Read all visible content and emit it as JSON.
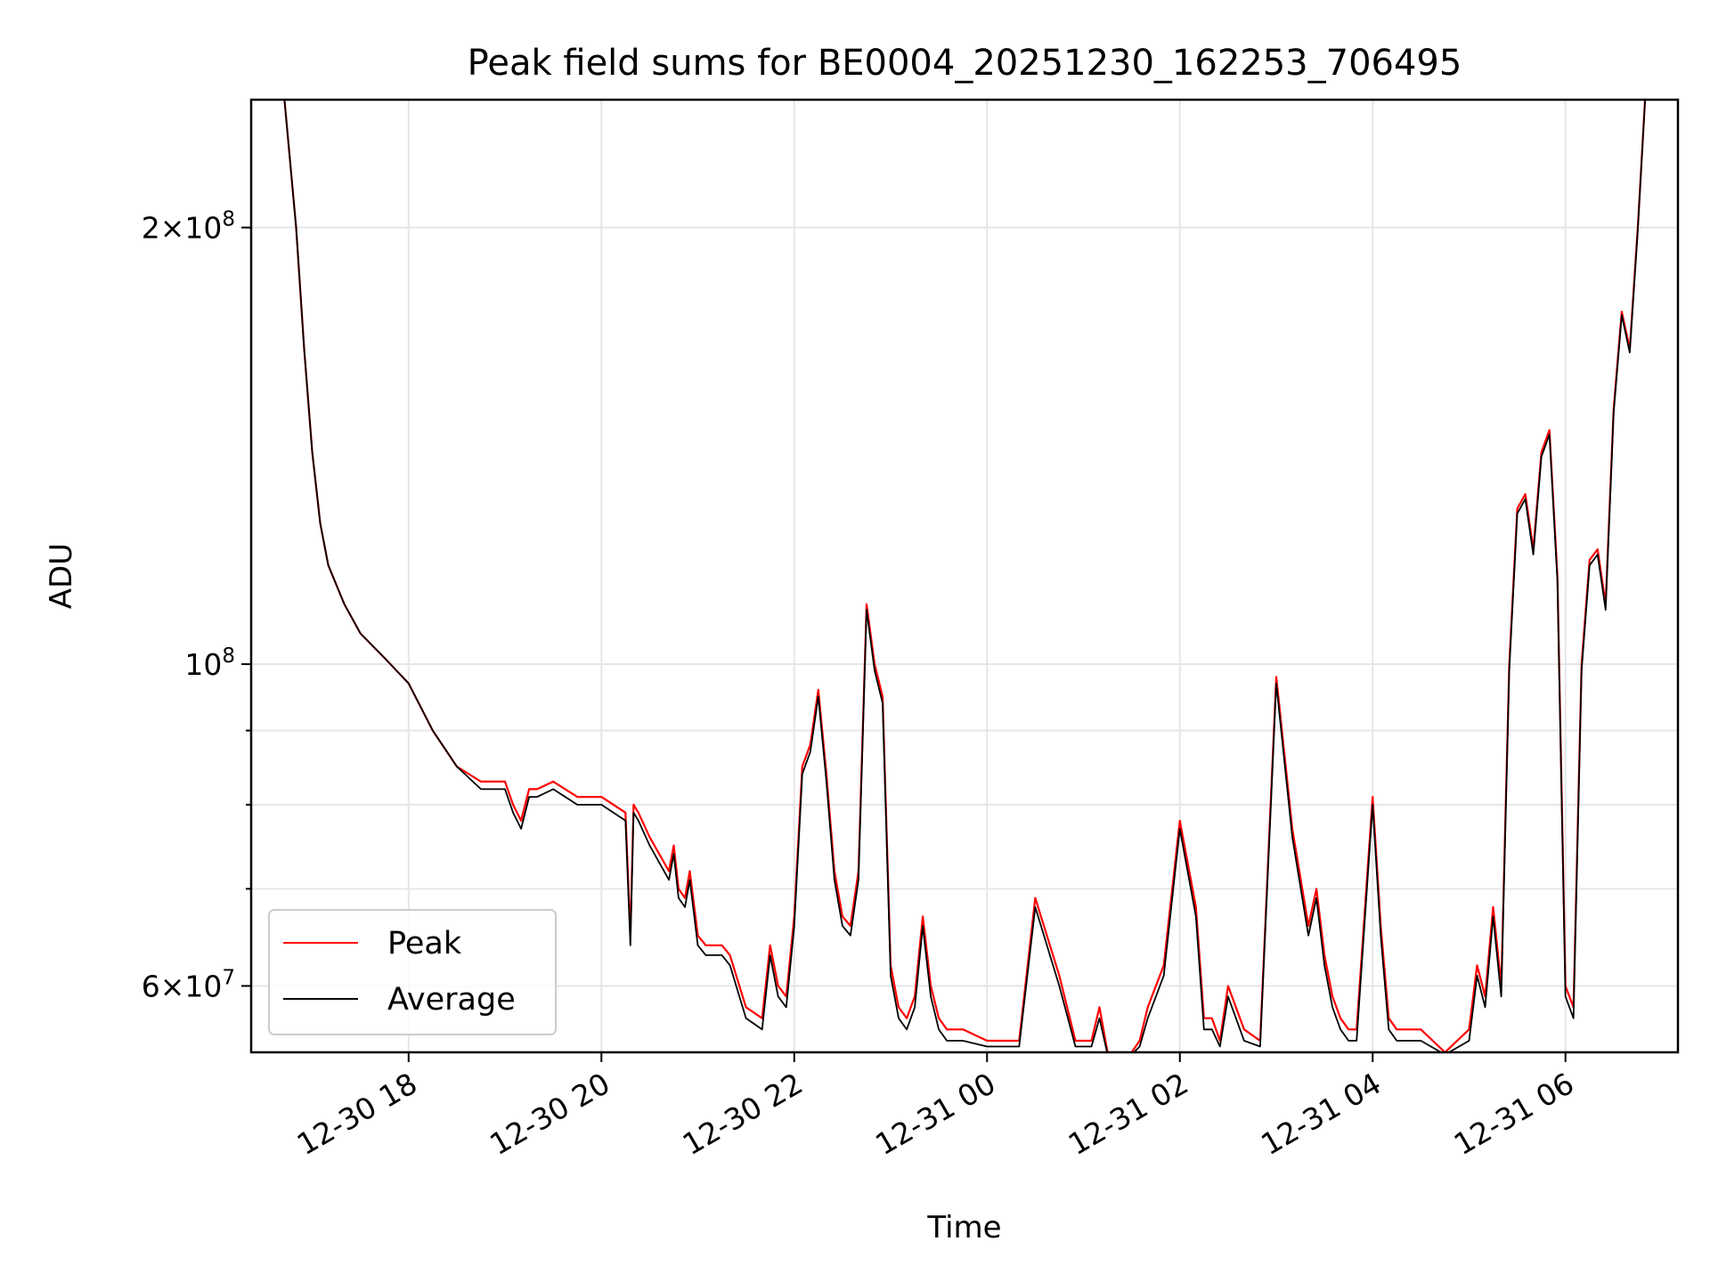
{
  "chart_data": {
    "type": "line",
    "title": "Peak field sums for BE0004_20251230_162253_706495",
    "xlabel": "Time",
    "ylabel": "ADU",
    "y_scale": "log",
    "ylim": [
      54000000,
      245000000
    ],
    "xlim": [
      "2025-12-30 16:22",
      "2025-12-31 07:10"
    ],
    "grid": true,
    "legend_position": "lower-left",
    "x_tick_labels": [
      "12-30 18",
      "12-30 20",
      "12-30 22",
      "12-31 00",
      "12-31 02",
      "12-31 04",
      "12-31 06"
    ],
    "x_ticks": [
      "2025-12-30 18:00",
      "2025-12-30 20:00",
      "2025-12-30 22:00",
      "2025-12-31 00:00",
      "2025-12-31 02:00",
      "2025-12-31 04:00",
      "2025-12-31 06:00"
    ],
    "y_major_ticks": [
      {
        "value": 60000000,
        "mantissa": "6",
        "exp": "7"
      },
      {
        "value": 100000000,
        "mantissa": "",
        "exp": "8"
      },
      {
        "value": 200000000,
        "mantissa": "2",
        "exp": "8"
      }
    ],
    "y_minor_ticks": [
      70000000,
      80000000,
      90000000
    ],
    "series": [
      {
        "name": "Peak",
        "color": "#ff0000"
      },
      {
        "name": "Average",
        "color": "#000000"
      }
    ],
    "x": [
      "2025-12-30 16:42",
      "2025-12-30 16:50",
      "2025-12-30 16:55",
      "2025-12-30 17:00",
      "2025-12-30 17:05",
      "2025-12-30 17:10",
      "2025-12-30 17:20",
      "2025-12-30 17:30",
      "2025-12-30 17:45",
      "2025-12-30 18:00",
      "2025-12-30 18:15",
      "2025-12-30 18:30",
      "2025-12-30 18:45",
      "2025-12-30 19:00",
      "2025-12-30 19:05",
      "2025-12-30 19:10",
      "2025-12-30 19:15",
      "2025-12-30 19:20",
      "2025-12-30 19:30",
      "2025-12-30 19:45",
      "2025-12-30 20:00",
      "2025-12-30 20:15",
      "2025-12-30 20:18",
      "2025-12-30 20:20",
      "2025-12-30 20:23",
      "2025-12-30 20:30",
      "2025-12-30 20:42",
      "2025-12-30 20:45",
      "2025-12-30 20:48",
      "2025-12-30 20:52",
      "2025-12-30 20:55",
      "2025-12-30 21:00",
      "2025-12-30 21:05",
      "2025-12-30 21:10",
      "2025-12-30 21:15",
      "2025-12-30 21:20",
      "2025-12-30 21:30",
      "2025-12-30 21:40",
      "2025-12-30 21:45",
      "2025-12-30 21:50",
      "2025-12-30 21:55",
      "2025-12-30 22:00",
      "2025-12-30 22:05",
      "2025-12-30 22:10",
      "2025-12-30 22:15",
      "2025-12-30 22:20",
      "2025-12-30 22:25",
      "2025-12-30 22:30",
      "2025-12-30 22:35",
      "2025-12-30 22:40",
      "2025-12-30 22:45",
      "2025-12-30 22:50",
      "2025-12-30 22:55",
      "2025-12-30 23:00",
      "2025-12-30 23:05",
      "2025-12-30 23:10",
      "2025-12-30 23:15",
      "2025-12-30 23:20",
      "2025-12-30 23:25",
      "2025-12-30 23:30",
      "2025-12-30 23:35",
      "2025-12-30 23:40",
      "2025-12-30 23:45",
      "2025-12-31 00:00",
      "2025-12-31 00:20",
      "2025-12-31 00:30",
      "2025-12-31 00:45",
      "2025-12-31 00:55",
      "2025-12-31 01:00",
      "2025-12-31 01:05",
      "2025-12-31 01:10",
      "2025-12-31 01:15",
      "2025-12-31 01:30",
      "2025-12-31 01:35",
      "2025-12-31 01:40",
      "2025-12-31 01:50",
      "2025-12-31 02:00",
      "2025-12-31 02:10",
      "2025-12-31 02:15",
      "2025-12-31 02:20",
      "2025-12-31 02:25",
      "2025-12-31 02:30",
      "2025-12-31 02:40",
      "2025-12-31 02:50",
      "2025-12-31 03:00",
      "2025-12-31 03:10",
      "2025-12-31 03:20",
      "2025-12-31 03:25",
      "2025-12-31 03:30",
      "2025-12-31 03:35",
      "2025-12-31 03:40",
      "2025-12-31 03:45",
      "2025-12-31 03:50",
      "2025-12-31 04:00",
      "2025-12-31 04:05",
      "2025-12-31 04:10",
      "2025-12-31 04:15",
      "2025-12-31 04:20",
      "2025-12-31 04:30",
      "2025-12-31 04:45",
      "2025-12-31 05:00",
      "2025-12-31 05:05",
      "2025-12-31 05:10",
      "2025-12-31 05:15",
      "2025-12-31 05:20",
      "2025-12-31 05:25",
      "2025-12-31 05:30",
      "2025-12-31 05:35",
      "2025-12-31 05:40",
      "2025-12-31 05:45",
      "2025-12-31 05:50",
      "2025-12-31 05:55",
      "2025-12-31 06:00",
      "2025-12-31 06:05",
      "2025-12-31 06:10",
      "2025-12-31 06:15",
      "2025-12-31 06:20",
      "2025-12-31 06:25",
      "2025-12-31 06:30",
      "2025-12-31 06:35",
      "2025-12-31 06:40",
      "2025-12-31 06:45",
      "2025-12-31 06:50"
    ],
    "peak": [
      250000000,
      200000000,
      165000000,
      140000000,
      125000000,
      117000000,
      110000000,
      105000000,
      101000000,
      97000000,
      90000000,
      85000000,
      83000000,
      83000000,
      80000000,
      78000000,
      82000000,
      82000000,
      83000000,
      81000000,
      81000000,
      79000000,
      65000000,
      80000000,
      79000000,
      76000000,
      72000000,
      75000000,
      70000000,
      69000000,
      72000000,
      65000000,
      64000000,
      64000000,
      64000000,
      63000000,
      58000000,
      57000000,
      64000000,
      60000000,
      59000000,
      67000000,
      85000000,
      88000000,
      96000000,
      84000000,
      72000000,
      67000000,
      66000000,
      72000000,
      110000000,
      100000000,
      95000000,
      62000000,
      58000000,
      57000000,
      59000000,
      67000000,
      60000000,
      57000000,
      56000000,
      56000000,
      56000000,
      55000000,
      55000000,
      69000000,
      61000000,
      55000000,
      55000000,
      55000000,
      58000000,
      54000000,
      54000000,
      55000000,
      58000000,
      62000000,
      78000000,
      68000000,
      57000000,
      57000000,
      55000000,
      60000000,
      56000000,
      55000000,
      98000000,
      77000000,
      66000000,
      70000000,
      63000000,
      59000000,
      57000000,
      56000000,
      56000000,
      81000000,
      66000000,
      57000000,
      56000000,
      56000000,
      56000000,
      54000000,
      56000000,
      62000000,
      59000000,
      68000000,
      60000000,
      100000000,
      128000000,
      131000000,
      120000000,
      140000000,
      145000000,
      115000000,
      60000000,
      58000000,
      100000000,
      118000000,
      120000000,
      110000000,
      150000000,
      175000000,
      165000000,
      200000000,
      250000000
    ],
    "average": [
      250000000,
      200000000,
      165000000,
      140000000,
      125000000,
      117000000,
      110000000,
      105000000,
      101000000,
      97000000,
      90000000,
      85000000,
      82000000,
      82000000,
      79000000,
      77000000,
      81000000,
      81000000,
      82000000,
      80000000,
      80000000,
      78000000,
      64000000,
      79000000,
      78000000,
      75000000,
      71000000,
      74000000,
      69000000,
      68000000,
      71000000,
      64000000,
      63000000,
      63000000,
      63000000,
      62000000,
      57000000,
      56000000,
      63000000,
      59000000,
      58000000,
      66000000,
      84000000,
      87000000,
      95000000,
      83000000,
      71000000,
      66000000,
      65000000,
      71000000,
      109000000,
      99000000,
      94000000,
      61000000,
      57000000,
      56000000,
      58000000,
      66000000,
      59000000,
      56000000,
      55000000,
      55000000,
      55000000,
      54500000,
      54500000,
      68000000,
      60000000,
      54500000,
      54500000,
      54500000,
      57000000,
      53800000,
      53800000,
      54500000,
      57000000,
      61000000,
      77000000,
      67000000,
      56000000,
      56000000,
      54500000,
      59000000,
      55000000,
      54500000,
      97000000,
      76000000,
      65000000,
      69000000,
      62000000,
      58000000,
      56000000,
      55000000,
      55000000,
      80000000,
      65000000,
      56000000,
      55000000,
      55000000,
      55000000,
      53800000,
      55000000,
      61000000,
      58000000,
      67000000,
      59000000,
      99000000,
      127000000,
      130000000,
      119000000,
      139000000,
      144000000,
      114000000,
      59000000,
      57000000,
      99000000,
      117000000,
      119000000,
      109000000,
      149000000,
      174000000,
      164000000,
      199000000,
      250000000
    ]
  }
}
